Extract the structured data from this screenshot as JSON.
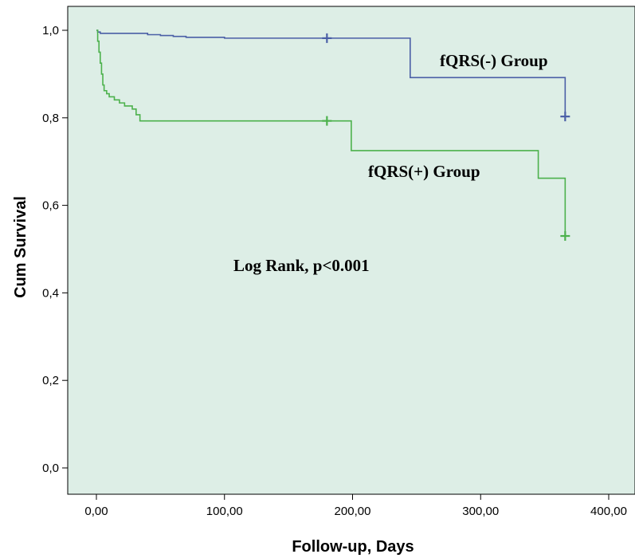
{
  "chart_data": {
    "type": "line",
    "subtype": "kaplan-meier",
    "title": "",
    "xlabel": "Follow-up, Days",
    "ylabel": "Cum Survival",
    "xlim": [
      0,
      400
    ],
    "ylim": [
      0,
      1
    ],
    "x_ticks": [
      0,
      100,
      200,
      300,
      400
    ],
    "x_tick_labels": [
      "0,00",
      "100,00",
      "200,00",
      "300,00",
      "400,00"
    ],
    "y_ticks": [
      0,
      0.2,
      0.4,
      0.6,
      0.8,
      1.0
    ],
    "y_tick_labels": [
      "0,0",
      "0,2",
      "0,4",
      "0,6",
      "0,8",
      "1,0"
    ],
    "grid": false,
    "plot_background": "#ddeee6",
    "series": [
      {
        "name": "fQRS(-) Group",
        "color": "#4a5fa6",
        "steps": [
          [
            0,
            1.0
          ],
          [
            1,
            0.996
          ],
          [
            3,
            0.993
          ],
          [
            40,
            0.99
          ],
          [
            50,
            0.988
          ],
          [
            60,
            0.986
          ],
          [
            70,
            0.984
          ],
          [
            100,
            0.982
          ],
          [
            245,
            0.892
          ],
          [
            366,
            0.803
          ]
        ],
        "censor": [
          [
            180,
            0.982
          ],
          [
            366,
            0.803
          ]
        ]
      },
      {
        "name": "fQRS(+) Group",
        "color": "#4cb14c",
        "steps": [
          [
            0,
            1.0
          ],
          [
            1,
            0.975
          ],
          [
            2,
            0.95
          ],
          [
            3,
            0.925
          ],
          [
            4,
            0.9
          ],
          [
            5,
            0.875
          ],
          [
            6,
            0.862
          ],
          [
            8,
            0.855
          ],
          [
            10,
            0.848
          ],
          [
            14,
            0.841
          ],
          [
            18,
            0.834
          ],
          [
            22,
            0.827
          ],
          [
            28,
            0.82
          ],
          [
            31,
            0.807
          ],
          [
            34,
            0.793
          ],
          [
            199,
            0.725
          ],
          [
            345,
            0.662
          ],
          [
            366,
            0.53
          ]
        ],
        "censor": [
          [
            180,
            0.793
          ],
          [
            366,
            0.53
          ]
        ]
      }
    ],
    "annotation": "Log Rank, p<0.001"
  }
}
